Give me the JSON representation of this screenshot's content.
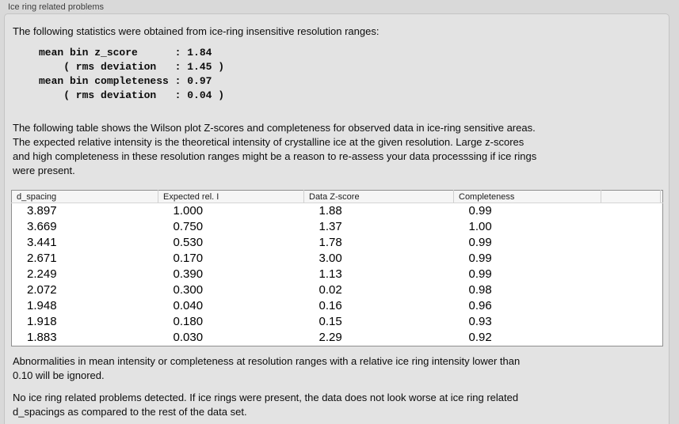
{
  "header": {
    "title": "Ice ring related problems"
  },
  "panel": {
    "intro": "The following statistics were obtained from ice-ring insensitive resolution ranges:",
    "stats_lines": [
      "mean bin z_score      : 1.84",
      "    ( rms deviation   : 1.45 )",
      "mean bin completeness : 0.97",
      "    ( rms deviation   : 0.04 )"
    ],
    "description_lines": [
      "The following table shows the Wilson plot Z-scores and completeness for observed data in ice-ring sensitive areas.",
      "The expected relative intensity is the theoretical intensity of crystalline ice at the given resolution. Large z-scores",
      "and high completeness in these resolution ranges might be a reason to re-assess your data processsing if ice rings",
      "were present."
    ],
    "table": {
      "columns": [
        "d_spacing",
        "Expected rel. I",
        "Data Z-score",
        "Completeness",
        ""
      ],
      "rows": [
        [
          "3.897",
          "1.000",
          "1.88",
          "0.99"
        ],
        [
          "3.669",
          "0.750",
          "1.37",
          "1.00"
        ],
        [
          "3.441",
          "0.530",
          "1.78",
          "0.99"
        ],
        [
          "2.671",
          "0.170",
          "3.00",
          "0.99"
        ],
        [
          "2.249",
          "0.390",
          "1.13",
          "0.99"
        ],
        [
          "2.072",
          "0.300",
          "0.02",
          "0.98"
        ],
        [
          "1.948",
          "0.040",
          "0.16",
          "0.96"
        ],
        [
          "1.918",
          "0.180",
          "0.15",
          "0.93"
        ],
        [
          "1.883",
          "0.030",
          "2.29",
          "0.92"
        ]
      ]
    },
    "ignore_note_lines": [
      "Abnormalities in mean intensity or completeness at resolution ranges with a relative ice ring intensity lower than",
      "0.10 will be ignored."
    ],
    "conclusion_lines": [
      "No ice ring related problems detected. If ice rings were present, the data does not look worse at ice ring related",
      "d_spacings as compared to the rest of the data set."
    ]
  },
  "colors": {
    "outer_background": "#d9d9d9",
    "panel_background": "#e3e3e3",
    "panel_border": "#c4c4c4",
    "table_border": "#8f8f8f",
    "table_header_background": "#f5f5f5",
    "text": "#0c0c0c"
  }
}
